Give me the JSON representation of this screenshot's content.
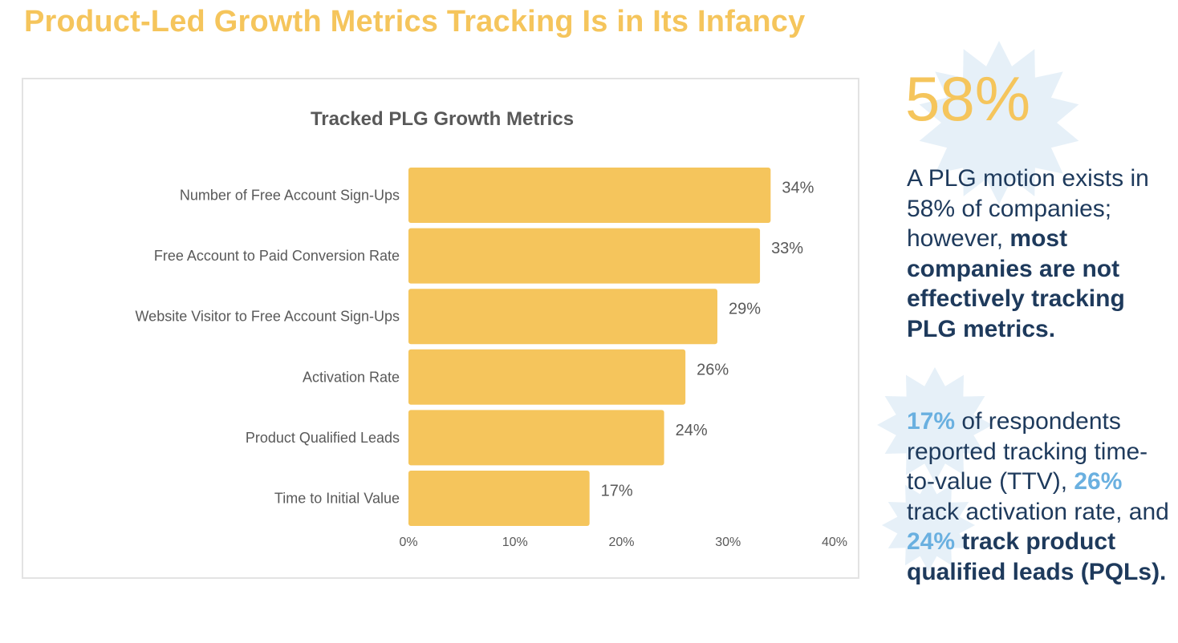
{
  "page_title": "Product-Led Growth Metrics Tracking Is in Its Infancy",
  "colors": {
    "title": "#f5c55c",
    "bar": "#f5c55c",
    "text_dark": "#1e3a5c",
    "highlight": "#6ab0e0",
    "label_gray": "#595959",
    "star": "#e6f0f8"
  },
  "chart_data": {
    "type": "bar",
    "orientation": "horizontal",
    "title": "Tracked PLG Growth Metrics",
    "categories": [
      "Number of Free Account Sign-Ups",
      "Free Account to Paid Conversion Rate",
      "Website Visitor to Free Account Sign-Ups",
      "Activation Rate",
      "Product Qualified Leads",
      "Time to Initial Value"
    ],
    "values": [
      34,
      33,
      29,
      26,
      24,
      17
    ],
    "value_labels": [
      "34%",
      "33%",
      "29%",
      "26%",
      "24%",
      "17%"
    ],
    "xlim": [
      0,
      40
    ],
    "x_ticks": [
      0,
      10,
      20,
      30,
      40
    ],
    "x_tick_labels": [
      "0%",
      "10%",
      "20%",
      "30%",
      "40%"
    ],
    "grid": false,
    "legend": "none"
  },
  "side": {
    "stat": "58%",
    "p1": {
      "plain": "A PLG motion exists in 58% of companies; however, ",
      "bold": "most companies are not effectively tracking PLG metrics."
    },
    "p2": {
      "hl1": "17%",
      "t1": " of respondents reported tracking time-to-value (TTV), ",
      "hl2": "26%",
      "t2": " track activation rate, and ",
      "hl3": "24%",
      "bold": " track product qualified leads (PQLs)."
    }
  }
}
